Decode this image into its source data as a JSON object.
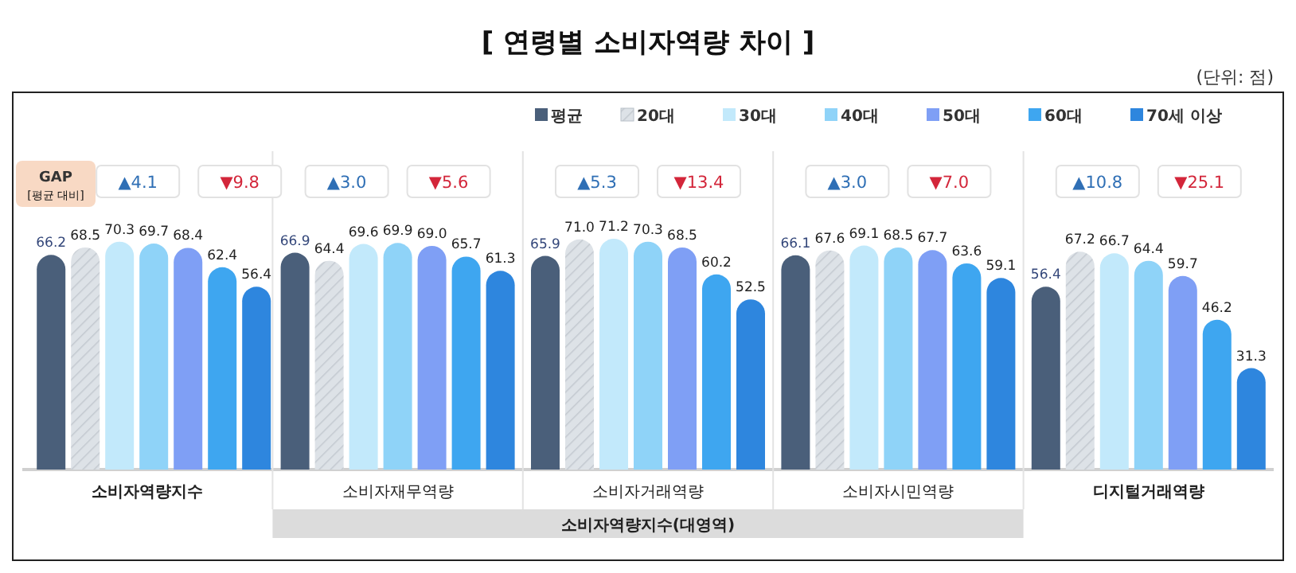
{
  "chart_data": {
    "type": "bar",
    "title": "[ 연령별 소비자역량 차이 ]",
    "categories": [
      "소비자역량지수",
      "소비자재무역량",
      "소비자거래역량",
      "소비자시민역량",
      "디지털거래역량"
    ],
    "series": [
      {
        "name": "평균",
        "color": "#4a5f7a",
        "values": [
          66.2,
          66.9,
          65.9,
          66.1,
          56.4
        ],
        "value_labels": [
          "66.2",
          "66.9",
          "65.9",
          "66.1",
          "56.4"
        ]
      },
      {
        "name": "20대",
        "color": "#dde2e7",
        "values": [
          68.5,
          64.4,
          71.0,
          67.6,
          67.2
        ],
        "value_labels": [
          "68.5",
          "64.4",
          "71.0",
          "67.6",
          "67.2"
        ]
      },
      {
        "name": "30대",
        "color": "#c2e9fb",
        "values": [
          70.3,
          69.6,
          71.2,
          69.1,
          66.7
        ],
        "value_labels": [
          "70.3",
          "69.6",
          "71.2",
          "69.1",
          "66.7"
        ]
      },
      {
        "name": "40대",
        "color": "#8fd3f8",
        "values": [
          69.7,
          69.9,
          70.3,
          68.5,
          64.4
        ],
        "value_labels": [
          "69.7",
          "69.9",
          "70.3",
          "68.5",
          "64.4"
        ]
      },
      {
        "name": "50대",
        "color": "#7f9ff5",
        "values": [
          68.4,
          69.0,
          68.5,
          67.7,
          59.7
        ],
        "value_labels": [
          "68.4",
          "69.0",
          "68.5",
          "67.7",
          "59.7"
        ]
      },
      {
        "name": "60대",
        "color": "#3ea6f0",
        "values": [
          62.4,
          65.7,
          60.2,
          63.6,
          46.2
        ],
        "value_labels": [
          "62.4",
          "65.7",
          "60.2",
          "63.6",
          "46.2"
        ]
      },
      {
        "name": "70세 이상",
        "color": "#2e86de",
        "values": [
          56.4,
          61.3,
          52.5,
          59.1,
          31.3
        ],
        "value_labels": [
          "56.4",
          "61.3",
          "52.5",
          "59.1",
          "31.3"
        ]
      }
    ],
    "legend": "top right",
    "annotations": [
      "(단위: 점)",
      "GAP",
      "[평균 대비]",
      "▲4.1",
      "▼9.8",
      "▲3.0",
      "▼5.6",
      "▲5.3",
      "▼13.4",
      "▲3.0",
      "▼7.0",
      "▲10.8",
      "▼25.1",
      "소비자역량지수(대영역)"
    ]
  }
}
